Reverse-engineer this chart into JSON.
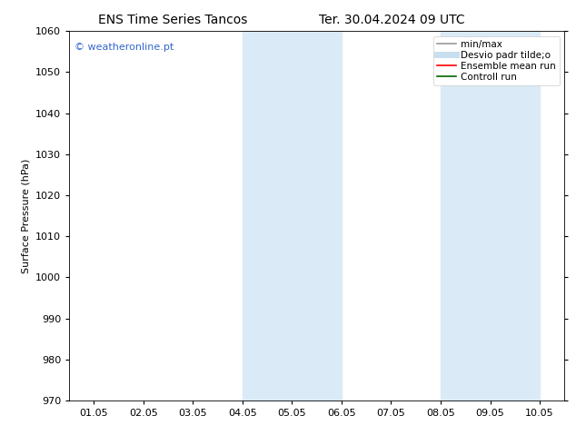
{
  "title_left": "ENS Time Series Tancos",
  "title_right": "Ter. 30.04.2024 09 UTC",
  "ylabel": "Surface Pressure (hPa)",
  "ylim": [
    970,
    1060
  ],
  "yticks": [
    970,
    980,
    990,
    1000,
    1010,
    1020,
    1030,
    1040,
    1050,
    1060
  ],
  "xtick_labels": [
    "01.05",
    "02.05",
    "03.05",
    "04.05",
    "05.05",
    "06.05",
    "07.05",
    "08.05",
    "09.05",
    "10.05"
  ],
  "n_ticks": 10,
  "xlim": [
    0,
    9
  ],
  "shaded_regions": [
    {
      "x_start": 3.0,
      "x_end": 5.0,
      "color": "#daeaf7"
    },
    {
      "x_start": 7.0,
      "x_end": 9.0,
      "color": "#daeaf7"
    }
  ],
  "watermark": "© weatheronline.pt",
  "watermark_color": "#3366cc",
  "legend_entries": [
    {
      "label": "min/max",
      "color": "#999999",
      "lw": 1.2
    },
    {
      "label": "Desvio padr tilde;o",
      "color": "#c8dff0",
      "lw": 5
    },
    {
      "label": "Ensemble mean run",
      "color": "#ff0000",
      "lw": 1.2
    },
    {
      "label": "Controll run",
      "color": "#006600",
      "lw": 1.2
    }
  ],
  "bg_color": "#ffffff",
  "figsize": [
    6.34,
    4.9
  ],
  "dpi": 100,
  "font_family": "DejaVu Sans",
  "title_fontsize": 10,
  "axis_fontsize": 8,
  "tick_fontsize": 8
}
